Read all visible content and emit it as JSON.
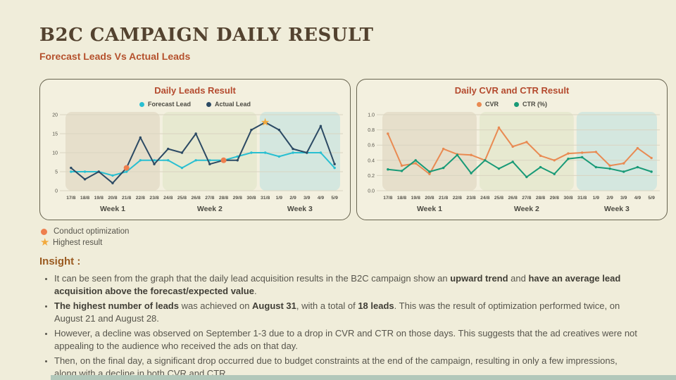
{
  "page": {
    "title": "B2C CAMPAIGN DAILY RESULT",
    "subtitle": "Forecast Leads Vs Actual Leads"
  },
  "colors": {
    "background": "#f0edda",
    "card_bg": "#f3f0df",
    "title": "#53422f",
    "subtitle": "#b5512d",
    "chart_title": "#b44a2e",
    "forecast": "#29bfd1",
    "actual": "#2c4a64",
    "cvr": "#e98a52",
    "ctr": "#189a77",
    "optimization_marker": "#ee7f4e",
    "star": "#f2a93c",
    "week1_band": "#e6dfcb",
    "week2_band": "#e7e9d0",
    "week3_band": "#d4e7df",
    "grid": "#d9d4c1",
    "axis_text": "#55534a",
    "footer_bar": "#b2c8ba"
  },
  "icons": {
    "star": "★"
  },
  "chart_data": [
    {
      "type": "line",
      "title": "Daily Leads Result",
      "categories": [
        "17/8",
        "18/8",
        "19/8",
        "20/8",
        "21/8",
        "22/8",
        "23/8",
        "24/8",
        "25/8",
        "26/8",
        "27/8",
        "28/8",
        "29/8",
        "30/8",
        "31/8",
        "1/9",
        "2/9",
        "3/9",
        "4/9",
        "5/9"
      ],
      "series": [
        {
          "name": "Forecast Lead",
          "color_key": "forecast",
          "values": [
            5,
            5,
            5,
            4,
            5,
            8,
            8,
            8,
            6,
            8,
            8,
            8,
            9,
            10,
            10,
            9,
            10,
            10,
            10,
            6
          ]
        },
        {
          "name": "Actual Lead",
          "color_key": "actual",
          "values": [
            6,
            3,
            5,
            2,
            6,
            14,
            7,
            11,
            10,
            15,
            7,
            8,
            8,
            16,
            18,
            16,
            11,
            10,
            17,
            7
          ]
        }
      ],
      "ylim": [
        0,
        20
      ],
      "yticks": [
        "0",
        "5",
        "10",
        "15",
        "20"
      ],
      "grid": true,
      "legend_position": "top",
      "weeks": [
        {
          "label": "Week 1",
          "from": 0,
          "to": 6,
          "color_key": "week1_band"
        },
        {
          "label": "Week 2",
          "from": 7,
          "to": 13,
          "color_key": "week2_band"
        },
        {
          "label": "Week 3",
          "from": 14,
          "to": 19,
          "color_key": "week3_band"
        }
      ],
      "markers": [
        {
          "type": "dot",
          "category": "21/8",
          "value": 6
        },
        {
          "type": "dot",
          "category": "28/8",
          "value": 8
        },
        {
          "type": "star",
          "category": "31/8",
          "value": 18
        }
      ]
    },
    {
      "type": "line",
      "title": "Daily CVR and CTR Result",
      "categories": [
        "17/8",
        "18/8",
        "19/8",
        "20/8",
        "21/8",
        "22/8",
        "23/8",
        "24/8",
        "25/8",
        "26/8",
        "27/8",
        "28/8",
        "29/8",
        "30/8",
        "31/8",
        "1/9",
        "2/9",
        "3/9",
        "4/9",
        "5/9"
      ],
      "series": [
        {
          "name": "CVR",
          "color_key": "cvr",
          "values": [
            0.75,
            0.33,
            0.36,
            0.22,
            0.55,
            0.48,
            0.47,
            0.4,
            0.83,
            0.58,
            0.64,
            0.46,
            0.4,
            0.49,
            0.5,
            0.51,
            0.33,
            0.36,
            0.56,
            0.43
          ]
        },
        {
          "name": "CTR (%)",
          "color_key": "ctr",
          "values": [
            0.28,
            0.26,
            0.4,
            0.25,
            0.3,
            0.47,
            0.23,
            0.4,
            0.29,
            0.38,
            0.18,
            0.31,
            0.22,
            0.42,
            0.44,
            0.31,
            0.29,
            0.25,
            0.31,
            0.25
          ]
        }
      ],
      "ylim": [
        0,
        1.0
      ],
      "yticks": [
        "0.0",
        "0.2",
        "0.4",
        "0.6",
        "0.8",
        "1.0"
      ],
      "grid": true,
      "legend_position": "top",
      "weeks": [
        {
          "label": "Week 1",
          "from": 0,
          "to": 6,
          "color_key": "week1_band"
        },
        {
          "label": "Week 2",
          "from": 7,
          "to": 13,
          "color_key": "week2_band"
        },
        {
          "label": "Week 3",
          "from": 14,
          "to": 19,
          "color_key": "week3_band"
        }
      ],
      "markers": []
    }
  ],
  "marker_legend": [
    {
      "symbol": "dot",
      "label": "Conduct optimization"
    },
    {
      "symbol": "star",
      "label": "Highest result"
    }
  ],
  "insight": {
    "heading": "Insight :",
    "bullets": [
      [
        {
          "t": "It can be seen from the graph that the daily lead acquisition results in the B2C campaign show an ",
          "b": false
        },
        {
          "t": "upward trend",
          "b": true
        },
        {
          "t": " and ",
          "b": false
        },
        {
          "t": "have an average lead acquisition above the forecast/expected value",
          "b": true
        },
        {
          "t": ".",
          "b": false
        }
      ],
      [
        {
          "t": "The highest number of leads",
          "b": true
        },
        {
          "t": " was achieved on ",
          "b": false
        },
        {
          "t": "August 31",
          "b": true
        },
        {
          "t": ", with a total of ",
          "b": false
        },
        {
          "t": "18 leads",
          "b": true
        },
        {
          "t": ". This was the result of optimization performed twice, on August 21 and August 28.",
          "b": false
        }
      ],
      [
        {
          "t": "However, a decline was observed on September 1-3 due to a drop in CVR and CTR on those days. This suggests that the ad creatives were not appealing to the audience who received the ads on that day.",
          "b": false
        }
      ],
      [
        {
          "t": "Then, on the final day, a significant drop occurred due to budget constraints at the end of the campaign, resulting in only a few impressions, along with a decline in both CVR and CTR.",
          "b": false
        }
      ]
    ]
  }
}
